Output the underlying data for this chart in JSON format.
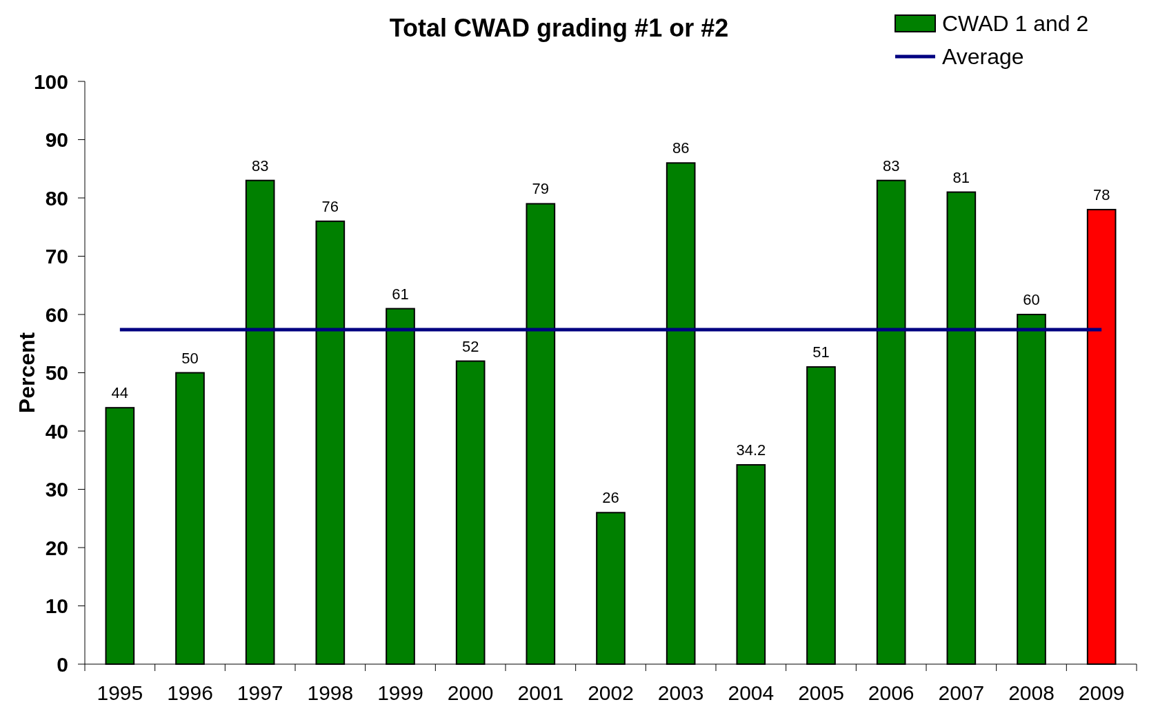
{
  "chart_data": {
    "type": "bar",
    "title": "Total CWAD grading #1 or #2",
    "ylabel": "Percent",
    "categories": [
      "1995",
      "1996",
      "1997",
      "1998",
      "1999",
      "2000",
      "2001",
      "2002",
      "2003",
      "2004",
      "2005",
      "2006",
      "2007",
      "2008",
      "2009"
    ],
    "series": [
      {
        "name": "CWAD 1 and 2",
        "color": "#008000",
        "colors": [
          "#008000",
          "#008000",
          "#008000",
          "#008000",
          "#008000",
          "#008000",
          "#008000",
          "#008000",
          "#008000",
          "#008000",
          "#008000",
          "#008000",
          "#008000",
          "#008000",
          "#ff0000"
        ],
        "values": [
          44,
          50,
          83,
          76,
          61,
          52,
          79,
          26,
          86,
          34.2,
          51,
          83,
          81,
          60,
          78
        ],
        "data_labels": true
      },
      {
        "name": "Average",
        "type": "line",
        "color": "#000080",
        "values": [
          57.4,
          57.4,
          57.4,
          57.4,
          57.4,
          57.4,
          57.4,
          57.4,
          57.4,
          57.4,
          57.4,
          57.4,
          57.4,
          57.4,
          57.4
        ]
      }
    ],
    "ylim": [
      0,
      100
    ],
    "yticks": [
      0,
      10,
      20,
      30,
      40,
      50,
      60,
      70,
      80,
      90,
      100
    ],
    "grid": false,
    "legend": "top right",
    "marker": "none",
    "line_style": "solid"
  }
}
